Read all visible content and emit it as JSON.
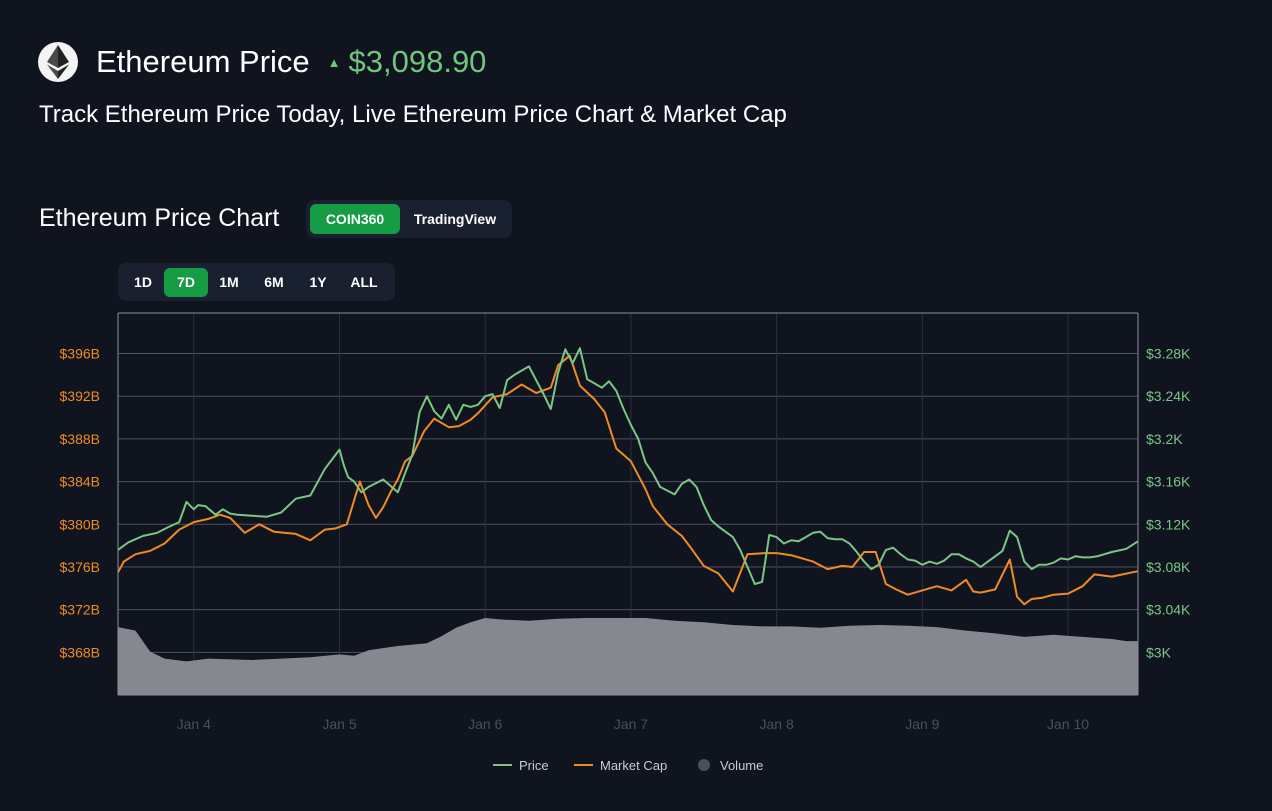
{
  "header": {
    "logo_icon": "ethereum-icon",
    "title": "Ethereum Price",
    "trend_icon": "triangle-up-icon",
    "price": "$3,098.90",
    "subtitle": "Track Ethereum Price Today, Live Ethereum Price Chart & Market Cap"
  },
  "chart_section": {
    "title": "Ethereum Price Chart",
    "sources": [
      {
        "label": "COIN360",
        "active": true
      },
      {
        "label": "TradingView",
        "active": false
      }
    ],
    "ranges": [
      {
        "label": "1D",
        "active": false
      },
      {
        "label": "7D",
        "active": true
      },
      {
        "label": "1M",
        "active": false
      },
      {
        "label": "6M",
        "active": false
      },
      {
        "label": "1Y",
        "active": false
      },
      {
        "label": "ALL",
        "active": false
      }
    ]
  },
  "colors": {
    "price": "#7bc685",
    "market_cap": "#f08a25",
    "volume": "#8c8e95",
    "accent": "#169c44",
    "left_axis_text": "#f08a25",
    "right_axis_text": "#7bc685"
  },
  "chart_data": {
    "type": "line",
    "x_ticks": [
      "Jan 4",
      "Jan 5",
      "Jan 6",
      "Jan 7",
      "Jan 8",
      "Jan 9",
      "Jan 10"
    ],
    "x_range_days": [
      3.48,
      10.48
    ],
    "x_tick_positions_days": [
      4,
      5,
      6,
      7,
      8,
      9,
      10
    ],
    "left_axis": {
      "ticks": [
        "$396B",
        "$392B",
        "$388B",
        "$384B",
        "$380B",
        "$376B",
        "$372B",
        "$368B"
      ],
      "tick_values": [
        396,
        392,
        388,
        384,
        380,
        376,
        372,
        368
      ],
      "range": [
        364,
        399.8
      ]
    },
    "right_axis": {
      "ticks": [
        "$3.28K",
        "$3.24K",
        "$3.2K",
        "$3.16K",
        "$3.12K",
        "$3.08K",
        "$3.04K",
        "$3K"
      ],
      "tick_values": [
        3280,
        3240,
        3200,
        3160,
        3120,
        3080,
        3040,
        3000
      ],
      "range": [
        2960,
        3318
      ]
    },
    "grid": true,
    "legend": {
      "position": "bottom-center",
      "entries": [
        "Price",
        "Market Cap",
        "Volume"
      ]
    },
    "series": [
      {
        "name": "Price",
        "axis": "right",
        "x": [
          3.48,
          3.55,
          3.65,
          3.75,
          3.82,
          3.9,
          3.95,
          4.0,
          4.03,
          4.08,
          4.15,
          4.2,
          4.25,
          4.3,
          4.4,
          4.5,
          4.6,
          4.7,
          4.8,
          4.9,
          5.0,
          5.03,
          5.06,
          5.1,
          5.15,
          5.2,
          5.3,
          5.4,
          5.45,
          5.5,
          5.55,
          5.6,
          5.65,
          5.7,
          5.75,
          5.8,
          5.85,
          5.9,
          5.95,
          6.0,
          6.05,
          6.1,
          6.15,
          6.2,
          6.3,
          6.4,
          6.45,
          6.5,
          6.55,
          6.6,
          6.65,
          6.7,
          6.75,
          6.8,
          6.85,
          6.9,
          6.95,
          7.0,
          7.05,
          7.1,
          7.15,
          7.2,
          7.3,
          7.35,
          7.4,
          7.45,
          7.5,
          7.55,
          7.6,
          7.7,
          7.75,
          7.8,
          7.85,
          7.9,
          7.95,
          8.0,
          8.05,
          8.1,
          8.15,
          8.2,
          8.25,
          8.3,
          8.35,
          8.4,
          8.45,
          8.5,
          8.55,
          8.6,
          8.65,
          8.7,
          8.75,
          8.8,
          8.85,
          8.9,
          8.95,
          9.0,
          9.05,
          9.1,
          9.15,
          9.2,
          9.25,
          9.3,
          9.35,
          9.4,
          9.45,
          9.5,
          9.55,
          9.6,
          9.65,
          9.7,
          9.75,
          9.8,
          9.85,
          9.9,
          9.95,
          10.0,
          10.05,
          10.1,
          10.15,
          10.2,
          10.3,
          10.4,
          10.48
        ],
        "values": [
          3096,
          3103,
          3109,
          3112,
          3117,
          3122,
          3141,
          3134,
          3138,
          3137,
          3129,
          3134,
          3130,
          3129,
          3128,
          3127,
          3131,
          3144,
          3147,
          3172,
          3190,
          3175,
          3164,
          3160,
          3150,
          3155,
          3162,
          3150,
          3168,
          3185,
          3225,
          3240,
          3226,
          3219,
          3232,
          3218,
          3232,
          3230,
          3232,
          3240,
          3242,
          3229,
          3255,
          3260,
          3268,
          3242,
          3228,
          3262,
          3284,
          3271,
          3285,
          3256,
          3252,
          3248,
          3254,
          3245,
          3228,
          3213,
          3200,
          3178,
          3168,
          3155,
          3148,
          3158,
          3162,
          3155,
          3138,
          3124,
          3118,
          3108,
          3096,
          3080,
          3064,
          3066,
          3110,
          3108,
          3102,
          3105,
          3104,
          3108,
          3112,
          3113,
          3107,
          3106,
          3106,
          3102,
          3094,
          3085,
          3078,
          3082,
          3096,
          3098,
          3092,
          3087,
          3086,
          3082,
          3085,
          3083,
          3086,
          3092,
          3092,
          3088,
          3085,
          3080,
          3085,
          3090,
          3095,
          3114,
          3108,
          3085,
          3078,
          3082,
          3082,
          3084,
          3088,
          3087,
          3090,
          3089,
          3089,
          3090,
          3094,
          3097,
          3104
        ]
      },
      {
        "name": "Market Cap",
        "axis": "left",
        "x": [
          3.48,
          3.52,
          3.6,
          3.7,
          3.8,
          3.9,
          4.0,
          4.1,
          4.18,
          4.25,
          4.35,
          4.45,
          4.55,
          4.7,
          4.8,
          4.9,
          4.97,
          5.05,
          5.14,
          5.2,
          5.25,
          5.3,
          5.35,
          5.4,
          5.45,
          5.5,
          5.58,
          5.65,
          5.75,
          5.82,
          5.9,
          5.95,
          6.05,
          6.15,
          6.25,
          6.35,
          6.45,
          6.5,
          6.58,
          6.65,
          6.75,
          6.82,
          6.9,
          7.0,
          7.05,
          7.1,
          7.15,
          7.25,
          7.35,
          7.4,
          7.5,
          7.6,
          7.7,
          7.8,
          7.92,
          8.0,
          8.1,
          8.25,
          8.35,
          8.45,
          8.52,
          8.6,
          8.68,
          8.75,
          8.82,
          8.9,
          9.0,
          9.1,
          9.2,
          9.3,
          9.35,
          9.4,
          9.5,
          9.6,
          9.65,
          9.7,
          9.75,
          9.82,
          9.9,
          10.0,
          10.1,
          10.18,
          10.3,
          10.48
        ],
        "values": [
          375.5,
          376.5,
          377.2,
          377.5,
          378.2,
          379.5,
          380.2,
          380.5,
          380.9,
          380.6,
          379.2,
          380.0,
          379.3,
          379.1,
          378.5,
          379.5,
          379.6,
          380.0,
          384.0,
          381.8,
          380.6,
          381.6,
          383.0,
          384.2,
          385.9,
          386.4,
          388.7,
          389.9,
          389.1,
          389.2,
          389.8,
          390.4,
          391.9,
          392.2,
          393.1,
          392.3,
          392.8,
          394.9,
          395.8,
          393.0,
          391.7,
          390.5,
          387.1,
          385.9,
          384.6,
          383.3,
          381.7,
          380.0,
          378.9,
          378.0,
          376.1,
          375.4,
          373.7,
          377.2,
          377.3,
          377.3,
          377.1,
          376.5,
          375.8,
          376.1,
          376.0,
          377.4,
          377.4,
          374.4,
          373.9,
          373.4,
          373.8,
          374.2,
          373.8,
          374.8,
          373.7,
          373.6,
          373.9,
          376.7,
          373.2,
          372.5,
          373.0,
          373.1,
          373.4,
          373.5,
          374.2,
          375.3,
          375.1,
          375.6
        ]
      },
      {
        "name": "Volume",
        "axis": "volume",
        "x": [
          3.48,
          3.6,
          3.7,
          3.8,
          3.95,
          4.1,
          4.4,
          4.6,
          4.8,
          5.0,
          5.1,
          5.2,
          5.4,
          5.6,
          5.7,
          5.8,
          5.9,
          6.0,
          6.1,
          6.3,
          6.5,
          6.7,
          6.9,
          7.1,
          7.3,
          7.5,
          7.7,
          7.9,
          8.1,
          8.3,
          8.5,
          8.7,
          8.9,
          9.1,
          9.3,
          9.5,
          9.7,
          9.9,
          10.1,
          10.3,
          10.4,
          10.48
        ],
        "values": [
          0.97,
          0.92,
          0.62,
          0.52,
          0.48,
          0.52,
          0.5,
          0.52,
          0.54,
          0.58,
          0.56,
          0.64,
          0.7,
          0.74,
          0.84,
          0.96,
          1.04,
          1.1,
          1.08,
          1.06,
          1.09,
          1.1,
          1.1,
          1.1,
          1.06,
          1.04,
          1.0,
          0.98,
          0.98,
          0.96,
          0.99,
          1.0,
          0.99,
          0.97,
          0.92,
          0.88,
          0.83,
          0.86,
          0.83,
          0.8,
          0.77,
          0.77
        ]
      }
    ]
  }
}
